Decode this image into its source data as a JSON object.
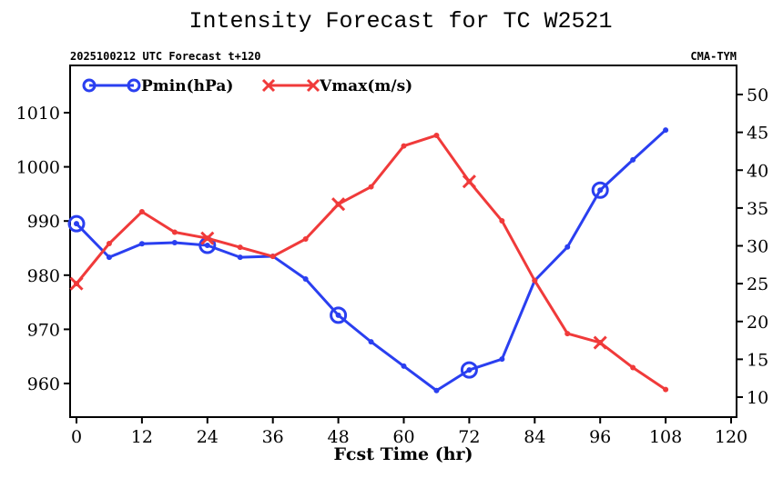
{
  "chart_data": {
    "type": "line",
    "title": "Intensity Forecast for TC W2521",
    "subtitle_left": "2025100212 UTC Forecast t+120",
    "subtitle_right": "CMA-TYM",
    "xlabel": "Fcst Time (hr)",
    "xlim": [
      0,
      120
    ],
    "xticks": [
      0,
      12,
      24,
      36,
      48,
      60,
      72,
      84,
      96,
      108,
      120
    ],
    "ylim_left": [
      955,
      1018
    ],
    "yticks_left": [
      960,
      970,
      980,
      990,
      1000,
      1010
    ],
    "ylim_right": [
      8,
      54
    ],
    "yticks_right": [
      10,
      15,
      20,
      25,
      30,
      35,
      40,
      45,
      50
    ],
    "grid": false,
    "legend_position": "top-left",
    "x": [
      0,
      6,
      12,
      18,
      24,
      30,
      36,
      42,
      48,
      54,
      60,
      66,
      72,
      78,
      84,
      90,
      96,
      102,
      108
    ],
    "series": [
      {
        "name": "Pmin(hPa)",
        "axis": "left",
        "color": "#2a3ff0",
        "marker": "circle",
        "marker_every_hr": 24,
        "values": [
          989.5,
          983.3,
          985.8,
          986.0,
          985.5,
          983.3,
          983.5,
          979.3,
          972.6,
          967.7,
          963.2,
          958.7,
          962.5,
          964.5,
          979.0,
          985.2,
          995.7,
          1001.3,
          1006.8
        ]
      },
      {
        "name": "Vmax(m/s)",
        "axis": "right",
        "color": "#f03a3a",
        "marker": "x",
        "marker_every_hr": 24,
        "values": [
          25.0,
          30.3,
          34.5,
          31.8,
          31.0,
          29.8,
          28.6,
          30.9,
          35.5,
          37.8,
          43.2,
          44.6,
          38.5,
          33.3,
          25.4,
          18.4,
          17.2,
          13.9,
          11.0
        ]
      }
    ]
  }
}
